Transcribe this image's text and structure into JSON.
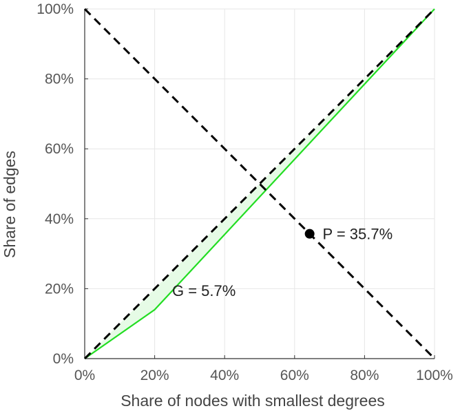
{
  "chart_data": {
    "type": "line",
    "xlabel": "Share of nodes with smallest degrees",
    "ylabel": "Share of edges",
    "xlim": [
      0,
      100
    ],
    "ylim": [
      0,
      100
    ],
    "grid": true,
    "x_ticks": [
      "0%",
      "20%",
      "40%",
      "60%",
      "80%",
      "100%"
    ],
    "y_ticks": [
      "0%",
      "20%",
      "40%",
      "60%",
      "80%",
      "100%"
    ],
    "series": [
      {
        "style": "solid",
        "color": "#22dd22",
        "fill_color": "#e6fbe6",
        "x": [
          0,
          20,
          100
        ],
        "y": [
          0,
          14,
          100
        ]
      },
      {
        "style": "dashed",
        "color": "#000000",
        "x": [
          0,
          100
        ],
        "y": [
          0,
          100
        ]
      },
      {
        "style": "dashed",
        "color": "#000000",
        "x": [
          0,
          100
        ],
        "y": [
          100,
          0
        ]
      }
    ],
    "point": {
      "x": 64.3,
      "y": 35.7
    },
    "annotations": [
      {
        "text": "P = 35.7%",
        "x": 68,
        "y": 35.7
      },
      {
        "text": "G = 5.7%",
        "x": 25,
        "y": 19.5
      }
    ]
  }
}
